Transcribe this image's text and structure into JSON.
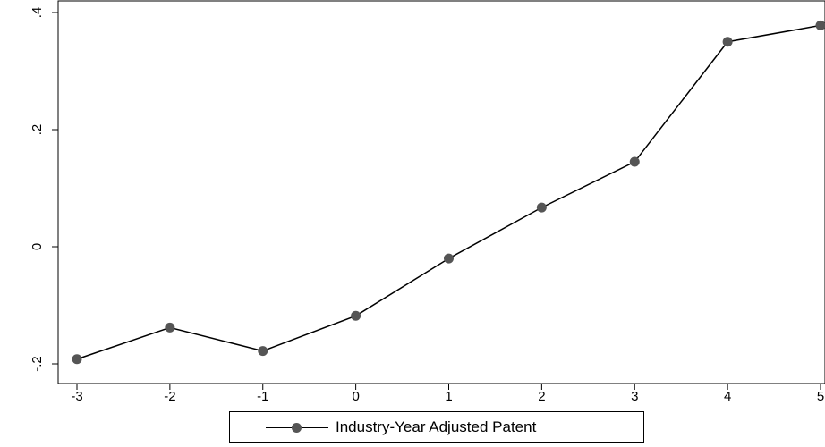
{
  "chart_data": {
    "type": "line",
    "title": "",
    "xlabel": "",
    "ylabel": "",
    "x": [
      -3,
      -2,
      -1,
      0,
      1,
      2,
      3,
      4,
      5
    ],
    "series": [
      {
        "name": "Industry-Year Adjusted Patent",
        "values": [
          -0.192,
          -0.138,
          -0.178,
          -0.118,
          -0.02,
          0.067,
          0.145,
          0.35,
          0.378
        ]
      }
    ],
    "xticks": [
      "-3",
      "-2",
      "-1",
      "0",
      "1",
      "2",
      "3",
      "4",
      "5"
    ],
    "yticks": [
      {
        "value": -0.2,
        "label": "-.2"
      },
      {
        "value": 0,
        "label": "0"
      },
      {
        "value": 0.2,
        "label": ".2"
      },
      {
        "value": 0.4,
        "label": ".4"
      }
    ],
    "xlim": [
      -3,
      5
    ],
    "ylim": [
      -0.2,
      0.4
    ],
    "grid": false,
    "legend_position": "bottom",
    "colors": {
      "line": "#000000",
      "marker": "#555555"
    }
  }
}
